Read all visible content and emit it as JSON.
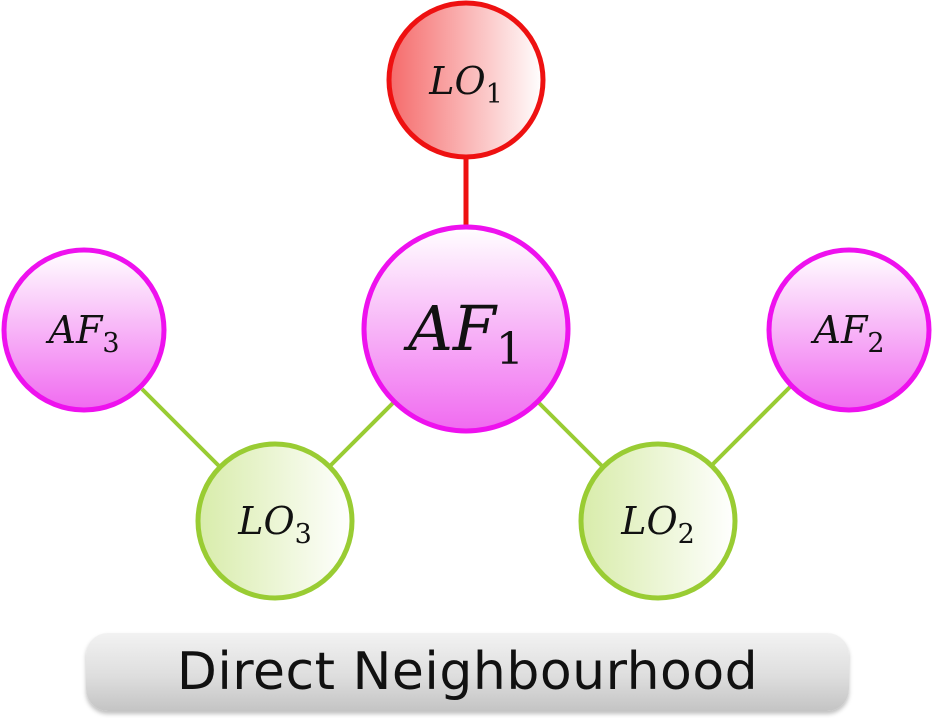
{
  "diagram": {
    "caption": "Direct Neighbourhood",
    "colors": {
      "red": "#ee1111",
      "magenta": "#ee11ee",
      "green": "#99cc33"
    },
    "nodes": [
      {
        "id": "lo1",
        "base": "LO",
        "sub": "1",
        "group": "red"
      },
      {
        "id": "af1",
        "base": "AF",
        "sub": "1",
        "group": "magenta"
      },
      {
        "id": "af3",
        "base": "AF",
        "sub": "3",
        "group": "magenta"
      },
      {
        "id": "af2",
        "base": "AF",
        "sub": "2",
        "group": "magenta"
      },
      {
        "id": "lo3",
        "base": "LO",
        "sub": "3",
        "group": "green"
      },
      {
        "id": "lo2",
        "base": "LO",
        "sub": "2",
        "group": "green"
      }
    ],
    "edges": [
      {
        "from": "lo1",
        "to": "af1",
        "group": "red"
      },
      {
        "from": "af1",
        "to": "lo3",
        "group": "green"
      },
      {
        "from": "af1",
        "to": "lo2",
        "group": "green"
      },
      {
        "from": "lo3",
        "to": "af3",
        "group": "green"
      },
      {
        "from": "lo2",
        "to": "af2",
        "group": "green"
      }
    ]
  }
}
